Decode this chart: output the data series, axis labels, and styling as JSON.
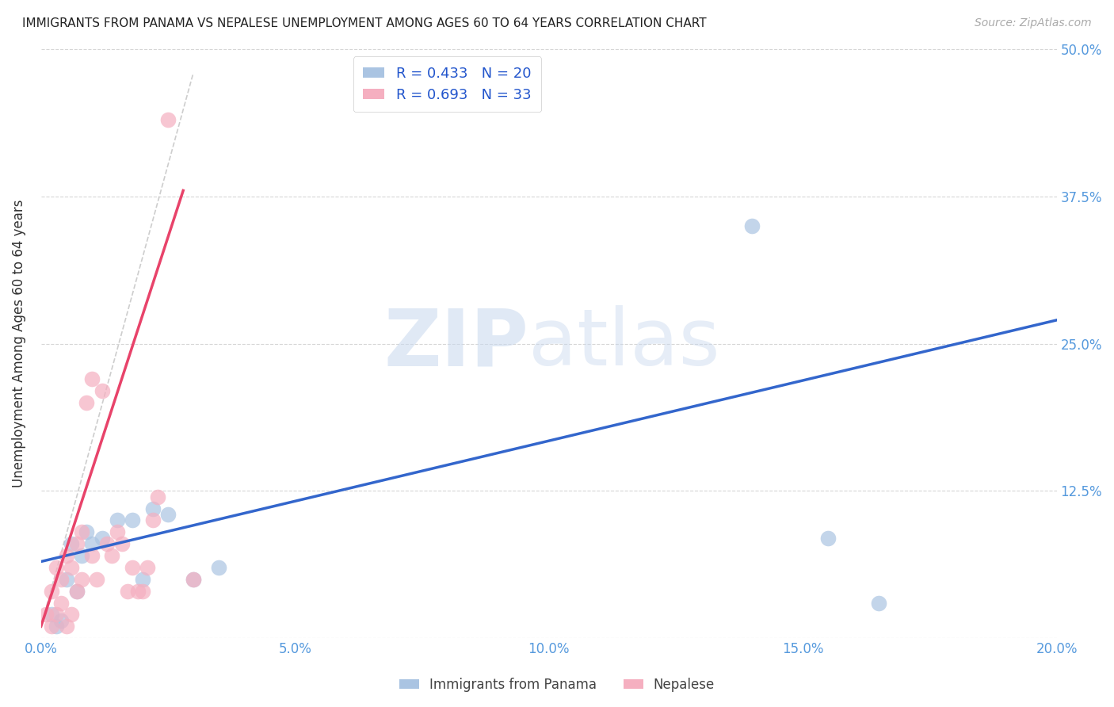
{
  "title": "IMMIGRANTS FROM PANAMA VS NEPALESE UNEMPLOYMENT AMONG AGES 60 TO 64 YEARS CORRELATION CHART",
  "source": "Source: ZipAtlas.com",
  "ylabel": "Unemployment Among Ages 60 to 64 years",
  "xlim": [
    0.0,
    0.2
  ],
  "ylim": [
    0.0,
    0.5
  ],
  "xticks": [
    0.0,
    0.05,
    0.1,
    0.15,
    0.2
  ],
  "xtick_labels": [
    "0.0%",
    "5.0%",
    "10.0%",
    "15.0%",
    "20.0%"
  ],
  "yticks": [
    0.0,
    0.125,
    0.25,
    0.375,
    0.5
  ],
  "ytick_labels_right": [
    "",
    "12.5%",
    "25.0%",
    "37.5%",
    "50.0%"
  ],
  "ytick_labels_left": [
    "",
    "",
    "",
    "",
    ""
  ],
  "r_blue": 0.433,
  "n_blue": 20,
  "r_pink": 0.693,
  "n_pink": 33,
  "legend_label_blue": "Immigrants from Panama",
  "legend_label_pink": "Nepalese",
  "blue_color": "#aac4e2",
  "pink_color": "#f5afc0",
  "blue_line_color": "#3366cc",
  "pink_line_color": "#e8436a",
  "blue_scatter_x": [
    0.002,
    0.003,
    0.004,
    0.005,
    0.006,
    0.007,
    0.008,
    0.009,
    0.01,
    0.012,
    0.015,
    0.018,
    0.02,
    0.022,
    0.025,
    0.03,
    0.035,
    0.14,
    0.155,
    0.165
  ],
  "blue_scatter_y": [
    0.02,
    0.01,
    0.015,
    0.05,
    0.08,
    0.04,
    0.07,
    0.09,
    0.08,
    0.085,
    0.1,
    0.1,
    0.05,
    0.11,
    0.105,
    0.05,
    0.06,
    0.35,
    0.085,
    0.03
  ],
  "pink_scatter_x": [
    0.001,
    0.002,
    0.002,
    0.003,
    0.003,
    0.004,
    0.004,
    0.005,
    0.005,
    0.006,
    0.006,
    0.007,
    0.007,
    0.008,
    0.008,
    0.009,
    0.01,
    0.01,
    0.011,
    0.012,
    0.013,
    0.014,
    0.015,
    0.016,
    0.017,
    0.018,
    0.019,
    0.02,
    0.021,
    0.022,
    0.023,
    0.025,
    0.03
  ],
  "pink_scatter_y": [
    0.02,
    0.01,
    0.04,
    0.02,
    0.06,
    0.03,
    0.05,
    0.01,
    0.07,
    0.02,
    0.06,
    0.04,
    0.08,
    0.05,
    0.09,
    0.2,
    0.07,
    0.22,
    0.05,
    0.21,
    0.08,
    0.07,
    0.09,
    0.08,
    0.04,
    0.06,
    0.04,
    0.04,
    0.06,
    0.1,
    0.12,
    0.44,
    0.05
  ],
  "blue_line_x": [
    0.0,
    0.2
  ],
  "blue_line_y": [
    0.065,
    0.27
  ],
  "pink_line_x": [
    0.0,
    0.028
  ],
  "pink_line_y": [
    0.01,
    0.38
  ],
  "gray_dashed_line_x": [
    0.0,
    0.03
  ],
  "gray_dashed_line_y": [
    0.01,
    0.48
  ]
}
